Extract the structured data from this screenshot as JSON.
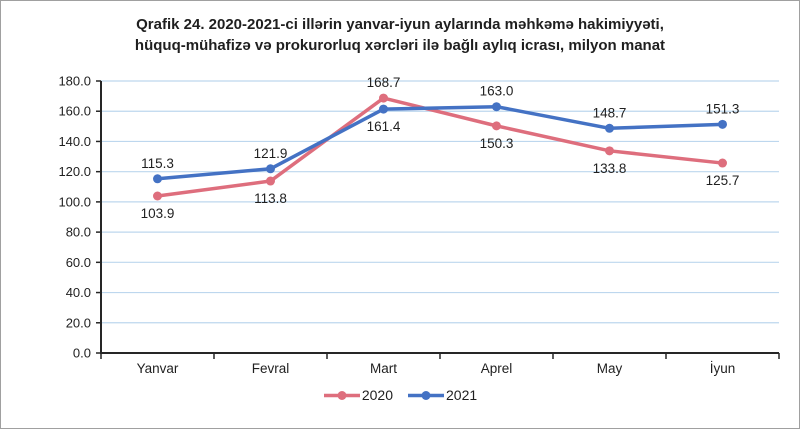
{
  "title": {
    "line1": "Qrafik 24. 2020-2021-ci illərin yanvar-iyun aylarında məhkəmə hakimiyyəti,",
    "line2": "hüquq-mühafizə və prokurorluq xərcləri ilə bağlı aylıq icrası, milyon manat"
  },
  "colors": {
    "series_2020": "#de6e7d",
    "series_2021": "#4472c4",
    "gridline": "#bdd7ee",
    "axis": "#262626",
    "text": "#1f1f1f",
    "frame_border": "#a0a0a0",
    "background": "#ffffff"
  },
  "chart_data": {
    "type": "line",
    "title": "Qrafik 24. 2020-2021-ci illərin yanvar-iyun aylarında məhkəmə hakimiyyəti, hüquq-mühafizə və prokurorluq xərcləri ilə bağlı aylıq icrası, milyon manat",
    "categories": [
      "Yanvar",
      "Fevral",
      "Mart",
      "Aprel",
      "May",
      "İyun"
    ],
    "series": [
      {
        "name": "2020",
        "color": "#de6e7d",
        "values": [
          103.9,
          113.8,
          168.7,
          150.3,
          133.8,
          125.7
        ],
        "label_positions": [
          "below",
          "below",
          "above",
          "below",
          "below",
          "below"
        ]
      },
      {
        "name": "2021",
        "color": "#4472c4",
        "values": [
          115.3,
          121.9,
          161.4,
          163.0,
          148.7,
          151.3
        ],
        "label_positions": [
          "above",
          "above",
          "below",
          "above",
          "above",
          "above"
        ]
      }
    ],
    "ylim": [
      0,
      180
    ],
    "ytick_step": 20,
    "ytick_decimals": 1,
    "grid": "horizontal",
    "value_labels": true,
    "legend_position": "bottom"
  }
}
